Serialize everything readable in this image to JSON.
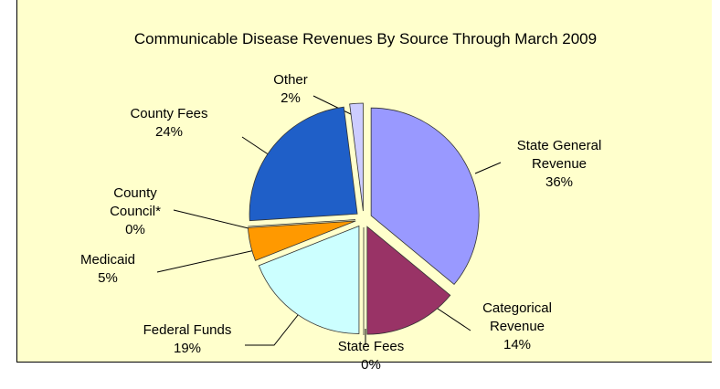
{
  "chart_data": {
    "type": "pie",
    "title": "Communicable Disease Revenues By Source Through March 2009",
    "categories": [
      "State General Revenue",
      "Categorical Revenue",
      "State Fees",
      "Federal Funds",
      "Medicaid",
      "County Council*",
      "County Fees",
      "Other"
    ],
    "values": [
      36,
      14,
      0,
      19,
      5,
      0,
      24,
      2
    ],
    "value_labels": [
      "36%",
      "14%",
      "0%",
      "19%",
      "5%",
      "0%",
      "24%",
      "2%"
    ],
    "colors": [
      "#9999ff",
      "#993366",
      "#ffffcc",
      "#ccffff",
      "#ff9900",
      "#ffffff",
      "#1f5fc8",
      "#ccccff"
    ]
  }
}
